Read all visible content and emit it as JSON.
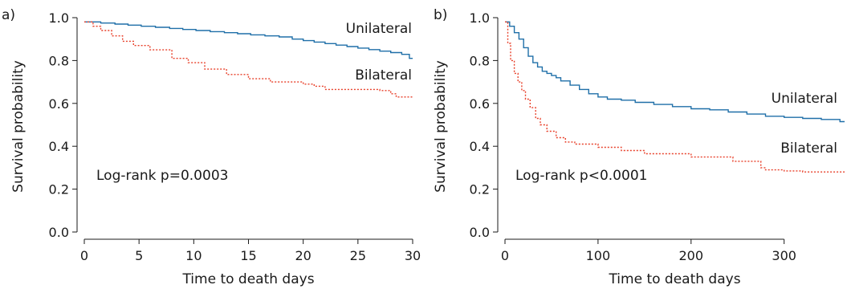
{
  "chart_data": [
    {
      "type": "line",
      "panel_label": "a)",
      "xlabel": "Time to death days",
      "ylabel": "Survival probability",
      "xlim": [
        0,
        30
      ],
      "ylim": [
        0,
        1
      ],
      "xticks": [
        0,
        5,
        10,
        15,
        20,
        25,
        30
      ],
      "yticks": [
        0.0,
        0.2,
        0.4,
        0.6,
        0.8,
        1.0
      ],
      "ytick_labels": [
        "0.0",
        "0.2",
        "0.4",
        "0.6",
        "0.8",
        "1.0"
      ],
      "annotation": "Log-rank p=0.0003",
      "grid": false,
      "series": [
        {
          "name": "Unilateral",
          "color": "#1f6fa8",
          "line_style": "solid",
          "step": true,
          "x": [
            0,
            1.5,
            2.8,
            4,
            5.2,
            6.5,
            7.8,
            9,
            10.2,
            11.5,
            12.8,
            14,
            15.2,
            16.5,
            17.8,
            19,
            20,
            21,
            22,
            23,
            24,
            25,
            26,
            27,
            28,
            29,
            29.7,
            30
          ],
          "y": [
            0.98,
            0.975,
            0.97,
            0.965,
            0.96,
            0.955,
            0.95,
            0.945,
            0.94,
            0.935,
            0.93,
            0.925,
            0.92,
            0.915,
            0.91,
            0.9,
            0.893,
            0.886,
            0.879,
            0.872,
            0.865,
            0.858,
            0.851,
            0.844,
            0.837,
            0.829,
            0.81,
            0.81
          ]
        },
        {
          "name": "Bilateral",
          "color": "#e8402a",
          "line_style": "dotted",
          "step": true,
          "x": [
            0,
            0.8,
            1.5,
            2.5,
            3.5,
            4.5,
            6,
            8,
            9.5,
            11,
            13,
            15,
            17,
            20,
            21,
            22,
            27,
            28,
            28.5,
            30
          ],
          "y": [
            0.98,
            0.96,
            0.94,
            0.915,
            0.89,
            0.87,
            0.85,
            0.81,
            0.79,
            0.76,
            0.735,
            0.715,
            0.7,
            0.69,
            0.68,
            0.665,
            0.66,
            0.645,
            0.63,
            0.63
          ]
        }
      ]
    },
    {
      "type": "line",
      "panel_label": "b)",
      "xlabel": "Time to death days",
      "ylabel": "Survival probability",
      "xlim": [
        0,
        365
      ],
      "ylim": [
        0,
        1
      ],
      "xticks": [
        0,
        100,
        200,
        300
      ],
      "yticks": [
        0.0,
        0.2,
        0.4,
        0.6,
        0.8,
        1.0
      ],
      "ytick_labels": [
        "0.0",
        "0.2",
        "0.4",
        "0.6",
        "0.8",
        "1.0"
      ],
      "annotation": "Log-rank p<0.0001",
      "grid": false,
      "series": [
        {
          "name": "Unilateral",
          "color": "#1f6fa8",
          "line_style": "solid",
          "step": true,
          "x": [
            0,
            5,
            10,
            15,
            20,
            25,
            30,
            35,
            40,
            45,
            50,
            55,
            60,
            70,
            80,
            90,
            100,
            110,
            125,
            140,
            160,
            180,
            200,
            220,
            240,
            260,
            280,
            300,
            320,
            340,
            360,
            365
          ],
          "y": [
            0.98,
            0.96,
            0.93,
            0.9,
            0.86,
            0.82,
            0.79,
            0.77,
            0.75,
            0.74,
            0.73,
            0.72,
            0.705,
            0.685,
            0.665,
            0.645,
            0.63,
            0.62,
            0.615,
            0.605,
            0.595,
            0.585,
            0.575,
            0.57,
            0.56,
            0.55,
            0.54,
            0.535,
            0.53,
            0.525,
            0.515,
            0.515
          ]
        },
        {
          "name": "Bilateral",
          "color": "#e8402a",
          "line_style": "dotted",
          "step": true,
          "x": [
            0,
            3,
            6,
            10,
            14,
            18,
            22,
            27,
            33,
            38,
            45,
            55,
            65,
            75,
            100,
            125,
            150,
            200,
            245,
            275,
            280,
            300,
            320,
            365
          ],
          "y": [
            0.98,
            0.88,
            0.8,
            0.74,
            0.7,
            0.66,
            0.62,
            0.58,
            0.53,
            0.5,
            0.47,
            0.44,
            0.42,
            0.41,
            0.395,
            0.38,
            0.365,
            0.35,
            0.33,
            0.3,
            0.29,
            0.285,
            0.28,
            0.28
          ]
        }
      ]
    }
  ]
}
